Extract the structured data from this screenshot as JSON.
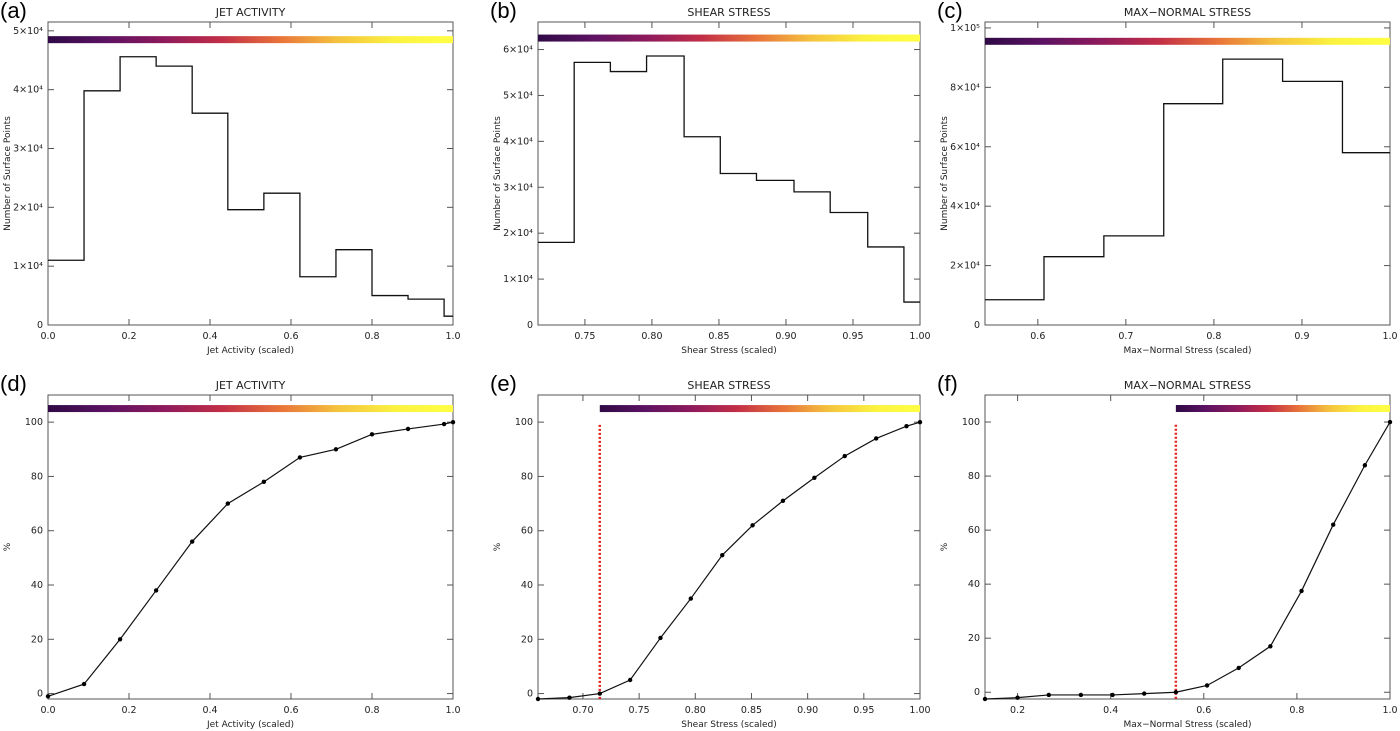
{
  "chart_data": [
    {
      "panel": "(a)",
      "type": "bar",
      "title": "JET ACTIVITY",
      "xlabel": "Jet Activity (scaled)",
      "ylabel": "Number of Surface Points",
      "xlim": [
        0.0,
        1.0
      ],
      "ylim": [
        0,
        51500
      ],
      "xticks": [
        0.0,
        0.2,
        0.4,
        0.6,
        0.8,
        1.0
      ],
      "xtick_labels": [
        "0.0",
        "0.2",
        "0.4",
        "0.6",
        "0.8",
        "1.0"
      ],
      "yticks": [
        0,
        10000,
        20000,
        30000,
        40000,
        50000
      ],
      "ytick_labels": [
        "0",
        "1×10⁴",
        "2×10⁴",
        "3×10⁴",
        "4×10⁴",
        "5×10⁴"
      ],
      "bin_edges": [
        0.0,
        0.089,
        0.178,
        0.267,
        0.356,
        0.444,
        0.533,
        0.622,
        0.711,
        0.8,
        0.889,
        0.978,
        1.0
      ],
      "values": [
        11000,
        39800,
        45600,
        44000,
        36000,
        19600,
        22400,
        8200,
        12800,
        5000,
        4400,
        1500
      ],
      "colorbar": {
        "from": 0.0,
        "to": 1.0,
        "y": 48500
      }
    },
    {
      "panel": "(b)",
      "type": "bar",
      "title": "SHEAR STRESS",
      "xlabel": "Shear Stress (scaled)",
      "ylabel": "Number of Surface Points",
      "xlim": [
        0.715,
        1.0
      ],
      "ylim": [
        0,
        66000
      ],
      "xticks": [
        0.75,
        0.8,
        0.85,
        0.9,
        0.95,
        1.0
      ],
      "xtick_labels": [
        "0.75",
        "0.80",
        "0.85",
        "0.90",
        "0.95",
        "1.00"
      ],
      "yticks": [
        0,
        10000,
        20000,
        30000,
        40000,
        50000,
        60000
      ],
      "ytick_labels": [
        "0",
        "1×10⁴",
        "2×10⁴",
        "3×10⁴",
        "4×10⁴",
        "5×10⁴",
        "6×10⁴"
      ],
      "bin_edges": [
        0.715,
        0.742,
        0.769,
        0.796,
        0.824,
        0.851,
        0.878,
        0.906,
        0.933,
        0.961,
        0.988,
        1.0
      ],
      "values": [
        18000,
        57200,
        55200,
        58600,
        41000,
        33000,
        31500,
        29000,
        24500,
        17000,
        5000
      ],
      "colorbar": {
        "from": 0.715,
        "to": 1.0,
        "y": 62500
      }
    },
    {
      "panel": "(c)",
      "type": "bar",
      "title": "MAX−NORMAL STRESS",
      "xlabel": "Max−Normal Stress (scaled)",
      "ylabel": "Number of Surface Points",
      "xlim": [
        0.54,
        1.0
      ],
      "ylim": [
        0,
        102000
      ],
      "xticks": [
        0.6,
        0.7,
        0.8,
        0.9,
        1.0
      ],
      "xtick_labels": [
        "0.6",
        "0.7",
        "0.8",
        "0.9",
        "1.0"
      ],
      "yticks": [
        0,
        20000,
        40000,
        60000,
        80000,
        100000
      ],
      "ytick_labels": [
        "0",
        "2×10⁴",
        "4×10⁴",
        "6×10⁴",
        "8×10⁴",
        "1×10⁵"
      ],
      "bin_edges": [
        0.54,
        0.607,
        0.675,
        0.743,
        0.81,
        0.878,
        0.946,
        1.0
      ],
      "values": [
        8500,
        23000,
        30000,
        74500,
        89500,
        82000,
        58000
      ],
      "colorbar": {
        "from": 0.54,
        "to": 1.0,
        "y": 95500
      }
    },
    {
      "panel": "(d)",
      "type": "line",
      "title": "JET ACTIVITY",
      "xlabel": "Jet Activity (scaled)",
      "ylabel": "%",
      "xlim": [
        0.0,
        1.0
      ],
      "ylim": [
        -2,
        110
      ],
      "xticks": [
        0.0,
        0.2,
        0.4,
        0.6,
        0.8,
        1.0
      ],
      "xtick_labels": [
        "0.0",
        "0.2",
        "0.4",
        "0.6",
        "0.8",
        "1.0"
      ],
      "yticks": [
        0,
        20,
        40,
        60,
        80,
        100
      ],
      "ytick_labels": [
        "0",
        "20",
        "40",
        "60",
        "80",
        "100"
      ],
      "x": [
        0.0,
        0.089,
        0.178,
        0.267,
        0.356,
        0.444,
        0.533,
        0.622,
        0.711,
        0.8,
        0.889,
        0.978,
        1.0
      ],
      "y": [
        -1,
        3.5,
        20,
        38,
        56,
        70,
        78,
        87,
        90,
        95.5,
        97.5,
        99.3,
        100
      ],
      "colorbar": {
        "from": 0.0,
        "to": 1.0,
        "y": 105
      }
    },
    {
      "panel": "(e)",
      "type": "line",
      "title": "SHEAR STRESS",
      "xlabel": "Shear Stress (scaled)",
      "ylabel": "%",
      "xlim": [
        0.66,
        1.0
      ],
      "ylim": [
        -2,
        110
      ],
      "xticks": [
        0.7,
        0.75,
        0.8,
        0.85,
        0.9,
        0.95,
        1.0
      ],
      "xtick_labels": [
        "0.70",
        "0.75",
        "0.80",
        "0.85",
        "0.90",
        "0.95",
        "1.00"
      ],
      "yticks": [
        0,
        20,
        40,
        60,
        80,
        100
      ],
      "ytick_labels": [
        "0",
        "20",
        "40",
        "60",
        "80",
        "100"
      ],
      "x": [
        0.66,
        0.688,
        0.715,
        0.742,
        0.769,
        0.796,
        0.824,
        0.851,
        0.878,
        0.906,
        0.933,
        0.961,
        0.988,
        1.0
      ],
      "y": [
        -2,
        -1.5,
        0,
        5,
        20.5,
        35,
        51,
        62,
        71,
        79.5,
        87.5,
        94,
        98.5,
        100
      ],
      "threshold": 0.715,
      "colorbar": {
        "from": 0.715,
        "to": 1.0,
        "y": 105
      }
    },
    {
      "panel": "(f)",
      "type": "line",
      "title": "MAX−NORMAL STRESS",
      "xlabel": "Max−Normal Stress (scaled)",
      "ylabel": "%",
      "xlim": [
        0.13,
        1.0
      ],
      "ylim": [
        -2.5,
        110
      ],
      "xticks": [
        0.2,
        0.4,
        0.6,
        0.8,
        1.0
      ],
      "xtick_labels": [
        "0.2",
        "0.4",
        "0.6",
        "0.8",
        "1.0"
      ],
      "yticks": [
        0,
        20,
        40,
        60,
        80,
        100
      ],
      "ytick_labels": [
        "0",
        "20",
        "40",
        "60",
        "80",
        "100"
      ],
      "x": [
        0.13,
        0.2,
        0.267,
        0.336,
        0.404,
        0.472,
        0.54,
        0.607,
        0.675,
        0.743,
        0.81,
        0.878,
        0.946,
        1.0
      ],
      "y": [
        -2.5,
        -2,
        -1,
        -1,
        -1,
        -0.5,
        0,
        2.5,
        9,
        17,
        37.5,
        62,
        84,
        100
      ],
      "threshold": 0.54,
      "colorbar": {
        "from": 0.54,
        "to": 1.0,
        "y": 105
      }
    }
  ],
  "colors": {
    "line": "#111111",
    "threshold": "#e0201a",
    "cmap": [
      "#2f0a46",
      "#5c1262",
      "#8e1a5c",
      "#c22e47",
      "#e8723a",
      "#f4c23e",
      "#fbf240",
      "#ffff44"
    ]
  }
}
